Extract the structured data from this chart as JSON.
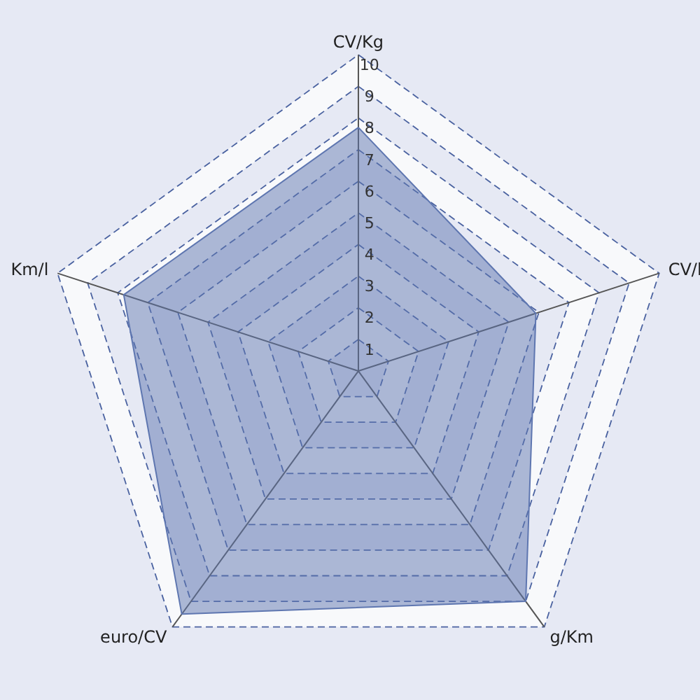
{
  "chart_data": {
    "type": "radar",
    "categories": [
      "CV/Kg",
      "CV/l",
      "g/Km",
      "euro/CV",
      "Km/l"
    ],
    "series": [
      {
        "color": "#5e76b0",
        "values": [
          7.7,
          5.9,
          9.0,
          9.5,
          7.8
        ]
      }
    ],
    "ylim": [
      0,
      10
    ],
    "yticks": [
      1,
      2,
      3,
      4,
      5,
      6,
      7,
      8,
      9,
      10
    ],
    "grid": true,
    "line_style": "solid"
  }
}
